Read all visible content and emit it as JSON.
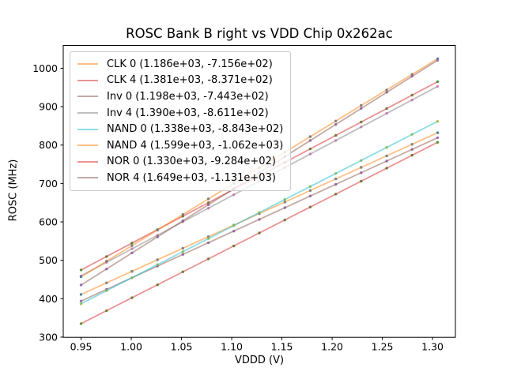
{
  "chart_data": {
    "type": "scatter",
    "title": "ROSC Bank B right vs VDD Chip 0x262ac",
    "xlabel": "VDDD (V)",
    "ylabel": "ROSC (MHz)",
    "xlim": [
      0.93225,
      1.32275
    ],
    "ylim": [
      299.5,
      1059.5
    ],
    "x_ticks": [
      "0.95",
      "1.00",
      "1.05",
      "1.10",
      "1.15",
      "1.20",
      "1.25",
      "1.30"
    ],
    "y_ticks": [
      300,
      400,
      500,
      600,
      700,
      800,
      900,
      1000
    ],
    "grid": false,
    "legend_position": "upper left",
    "note": "each series = measured scatter points plus linear fit line; legend shows (slope, intercept) of fit in MHz/V and MHz",
    "x": [
      0.95,
      0.9754,
      1.0007,
      1.0261,
      1.0514,
      1.0768,
      1.1021,
      1.1275,
      1.1529,
      1.1782,
      1.2036,
      1.2289,
      1.2543,
      1.2796,
      1.305
    ],
    "series": [
      {
        "name": "CLK 0",
        "legend_label": "CLK 0 (1.186e+03, -7.156e+02)",
        "slope": 1186,
        "intercept": -715.6,
        "line_color": "#ff7f0e",
        "marker_color": "#1f77b4",
        "y": [
          411.1,
          441.2,
          471.2,
          501.4,
          531.4,
          561.5,
          591.5,
          621.6,
          651.7,
          681.7,
          711.9,
          741.9,
          772.0,
          802.0,
          832.1
        ]
      },
      {
        "name": "CLK 4",
        "legend_label": "CLK 4 (1.381e+03, -8.371e+02)",
        "slope": 1381,
        "intercept": -837.1,
        "line_color": "#d62728",
        "marker_color": "#2ca02c",
        "y": [
          474.9,
          509.9,
          544.9,
          579.9,
          614.9,
          650.0,
          684.9,
          720.0,
          755.1,
          790.0,
          825.1,
          860.0,
          895.1,
          930.0,
          965.1
        ]
      },
      {
        "name": "Inv 0",
        "legend_label": "Inv 0 (1.198e+03, -7.443e+02)",
        "slope": 1198,
        "intercept": -744.3,
        "line_color": "#8c564b",
        "marker_color": "#9467bd",
        "y": [
          393.8,
          424.2,
          454.5,
          485.0,
          515.3,
          545.7,
          576.0,
          606.4,
          636.9,
          667.2,
          697.6,
          727.9,
          758.4,
          788.7,
          819.1
        ]
      },
      {
        "name": "Inv 4",
        "legend_label": "Inv 4 (1.390e+03, -8.611e+02)",
        "slope": 1390,
        "intercept": -861.1,
        "line_color": "#7f7f7f",
        "marker_color": "#e377c2",
        "y": [
          459.4,
          494.7,
          529.9,
          565.2,
          600.3,
          635.7,
          670.8,
          706.1,
          741.4,
          776.6,
          811.9,
          847.1,
          882.4,
          917.5,
          952.9
        ]
      },
      {
        "name": "NAND 0",
        "legend_label": "NAND 0 (1.338e+03, -8.843e+02)",
        "slope": 1338,
        "intercept": -884.3,
        "line_color": "#17becf",
        "marker_color": "#bcbd22",
        "y": [
          386.8,
          420.8,
          454.6,
          488.6,
          522.5,
          556.5,
          590.3,
          624.3,
          658.3,
          692.1,
          726.1,
          760.0,
          794.0,
          827.8,
          861.8
        ]
      },
      {
        "name": "NAND 4",
        "legend_label": "NAND 4 (1.599e+03, -1.062e+03)",
        "slope": 1599,
        "intercept": -1062,
        "line_color": "#ff7f0e",
        "marker_color": "#1f77b4",
        "y": [
          457.1,
          497.7,
          538.1,
          578.7,
          619.2,
          659.8,
          700.3,
          740.9,
          781.5,
          821.9,
          862.6,
          903.0,
          943.6,
          984.1,
          1024.7
        ]
      },
      {
        "name": "NOR 0",
        "legend_label": "NOR 0 (1.330e+03, -9.284e+02)",
        "slope": 1330,
        "intercept": -928.4,
        "line_color": "#d62728",
        "marker_color": "#2ca02c",
        "y": [
          335.1,
          368.9,
          402.5,
          436.3,
          470.0,
          503.7,
          537.4,
          571.2,
          605.0,
          638.6,
          672.4,
          706.0,
          739.8,
          773.5,
          807.3
        ]
      },
      {
        "name": "NOR 4",
        "legend_label": "NOR 4 (1.649e+03, -1.131e+03)",
        "slope": 1649,
        "intercept": -1131,
        "line_color": "#8c564b",
        "marker_color": "#9467bd",
        "y": [
          435.6,
          477.4,
          519.2,
          561.0,
          602.8,
          644.6,
          686.4,
          728.2,
          770.1,
          811.9,
          853.7,
          895.5,
          937.3,
          979.1,
          1020.9
        ]
      }
    ]
  },
  "colors": {
    "background": "#ffffff",
    "axis": "#000000",
    "legend_border": "#cbcbcb",
    "line_alpha": "0.5",
    "marker_alpha": "0.9"
  }
}
